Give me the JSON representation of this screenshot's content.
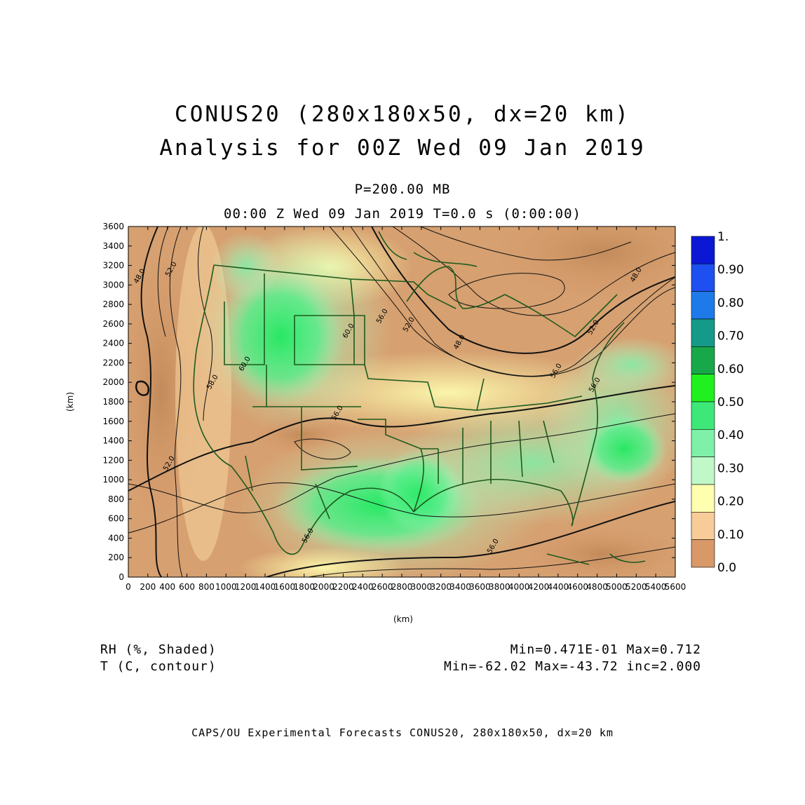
{
  "header": {
    "title_line1": "CONUS20 (280x180x50, dx=20 km)",
    "title_line2": "Analysis for 00Z Wed 09 Jan 2019",
    "level": "P=200.00 MB",
    "time": "00:00 Z Wed 09 Jan 2019   T=0.0 s (0:00:00)"
  },
  "axes": {
    "x_label": "(km)",
    "y_label": "(km)",
    "x_ticks": [
      "0",
      "200",
      "400",
      "600",
      "800",
      "1000",
      "1200",
      "1400",
      "1600",
      "1800",
      "2000",
      "2200",
      "2400",
      "2600",
      "2800",
      "3000",
      "3200",
      "3400",
      "3600",
      "3800",
      "4000",
      "4200",
      "4400",
      "4600",
      "4800",
      "5000",
      "5200",
      "5400",
      "5600"
    ],
    "y_ticks": [
      "0",
      "200",
      "400",
      "600",
      "800",
      "1000",
      "1200",
      "1400",
      "1600",
      "1800",
      "2000",
      "2200",
      "2400",
      "2600",
      "2800",
      "3000",
      "3200",
      "3400",
      "3600"
    ]
  },
  "colorbar": {
    "labels": [
      "1.",
      "0.90",
      "0.80",
      "0.70",
      "0.60",
      "0.50",
      "0.40",
      "0.30",
      "0.20",
      "0.10",
      "0.0"
    ],
    "colors": [
      "#0a18d6",
      "#1e4ff0",
      "#1e7ae8",
      "#159a8a",
      "#18a84a",
      "#20f020",
      "#3ee878",
      "#7ef0a8",
      "#c0f8c8",
      "#ffffb0",
      "#f8cc98",
      "#d89868"
    ]
  },
  "contour_labels": [
    "48.0",
    "52.0",
    "58.0",
    "60.0",
    "60.0",
    "56.0",
    "52.0",
    "48.0",
    "56.0",
    "56.0",
    "48.0",
    "52.0",
    "56.0",
    "56.0",
    "52.0",
    "56.0"
  ],
  "legend": {
    "shaded_name": "RH (%, Shaded)",
    "contour_name": "T (C, contour)",
    "shaded_stats": "Min=0.471E-01 Max=0.712",
    "contour_stats": "Min=-62.02 Max=-43.72 inc=2.000"
  },
  "footer": "CAPS/OU Experimental Forecasts  CONUS20, 280x180x50, dx=20 km"
}
